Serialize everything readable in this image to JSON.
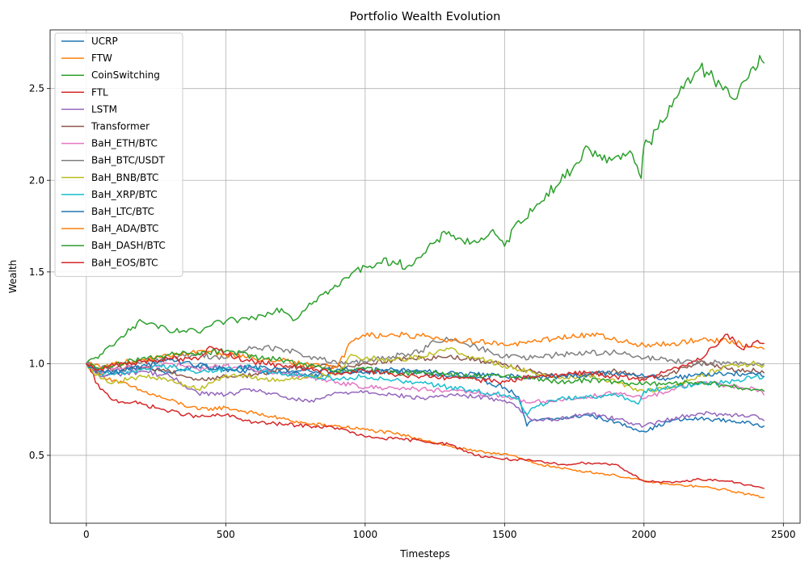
{
  "chart_data": {
    "type": "line",
    "title": "Portfolio Wealth Evolution",
    "xlabel": "Timesteps",
    "ylabel": "Wealth",
    "xlim": [
      -130,
      2560
    ],
    "ylim": [
      0.13,
      2.82
    ],
    "xticks": [
      0,
      500,
      1000,
      1500,
      2000,
      2500
    ],
    "yticks": [
      0.5,
      1.0,
      1.5,
      2.0,
      2.5
    ],
    "xtick_labels": [
      "0",
      "500",
      "1000",
      "1500",
      "2000",
      "2500"
    ],
    "ytick_labels": [
      "0.5",
      "1.0",
      "1.5",
      "2.0",
      "2.5"
    ],
    "grid": true,
    "legend_position": "top-left",
    "series": [
      {
        "name": "UCRP",
        "color": "#1f77b4",
        "x": [
          0,
          50,
          100,
          200,
          300,
          400,
          500,
          600,
          700,
          800,
          900,
          1000,
          1100,
          1200,
          1300,
          1400,
          1500,
          1550,
          1580,
          1600,
          1700,
          1800,
          1900,
          2000,
          2100,
          2200,
          2300,
          2400,
          2430
        ],
        "y": [
          1.0,
          0.93,
          0.96,
          0.98,
          0.95,
          0.99,
          0.97,
          0.96,
          0.95,
          0.94,
          0.95,
          0.95,
          0.96,
          0.95,
          0.93,
          0.92,
          0.87,
          0.82,
          0.66,
          0.69,
          0.7,
          0.72,
          0.68,
          0.63,
          0.69,
          0.7,
          0.69,
          0.67,
          0.66
        ]
      },
      {
        "name": "FTW",
        "color": "#ff7f0e",
        "x": [
          0,
          50,
          100,
          200,
          300,
          400,
          500,
          600,
          700,
          800,
          900,
          1000,
          1100,
          1200,
          1300,
          1400,
          1500,
          1600,
          1700,
          1800,
          1900,
          2000,
          2100,
          2200,
          2300,
          2400,
          2430
        ],
        "y": [
          1.0,
          0.94,
          0.91,
          0.85,
          0.8,
          0.75,
          0.76,
          0.73,
          0.7,
          0.67,
          0.66,
          0.64,
          0.62,
          0.59,
          0.55,
          0.52,
          0.51,
          0.46,
          0.43,
          0.41,
          0.39,
          0.36,
          0.34,
          0.33,
          0.31,
          0.28,
          0.27
        ]
      },
      {
        "name": "CoinSwitching",
        "color": "#2ca02c",
        "x": [
          0,
          50,
          100,
          150,
          200,
          250,
          300,
          350,
          400,
          450,
          500,
          550,
          600,
          650,
          700,
          750,
          800,
          850,
          900,
          950,
          1000,
          1050,
          1100,
          1150,
          1200,
          1250,
          1300,
          1350,
          1400,
          1450,
          1500,
          1550,
          1600,
          1650,
          1700,
          1750,
          1800,
          1850,
          1900,
          1950,
          1975,
          1990,
          2000,
          2020,
          2050,
          2100,
          2150,
          2200,
          2225,
          2250,
          2275,
          2300,
          2325,
          2350,
          2375,
          2400,
          2415,
          2430
        ],
        "y": [
          1.0,
          1.05,
          1.1,
          1.19,
          1.23,
          1.21,
          1.17,
          1.18,
          1.17,
          1.21,
          1.23,
          1.24,
          1.25,
          1.28,
          1.3,
          1.24,
          1.33,
          1.38,
          1.42,
          1.49,
          1.53,
          1.55,
          1.56,
          1.53,
          1.58,
          1.66,
          1.72,
          1.67,
          1.66,
          1.72,
          1.64,
          1.78,
          1.83,
          1.93,
          1.99,
          2.08,
          2.18,
          2.11,
          2.13,
          2.16,
          2.08,
          2.01,
          2.19,
          2.21,
          2.28,
          2.4,
          2.54,
          2.61,
          2.59,
          2.55,
          2.52,
          2.5,
          2.44,
          2.53,
          2.56,
          2.6,
          2.68,
          2.64
        ]
      },
      {
        "name": "FTL",
        "color": "#d62728",
        "x": [
          0,
          50,
          100,
          200,
          300,
          400,
          500,
          600,
          700,
          800,
          900,
          1000,
          1100,
          1200,
          1300,
          1400,
          1500,
          1600,
          1700,
          1800,
          1900,
          2000,
          2100,
          2200,
          2300,
          2400,
          2430
        ],
        "y": [
          1.0,
          0.86,
          0.8,
          0.78,
          0.74,
          0.71,
          0.72,
          0.68,
          0.67,
          0.66,
          0.65,
          0.6,
          0.59,
          0.58,
          0.56,
          0.5,
          0.48,
          0.47,
          0.45,
          0.46,
          0.45,
          0.36,
          0.35,
          0.37,
          0.36,
          0.33,
          0.32
        ]
      },
      {
        "name": "LSTM",
        "color": "#9467bd",
        "x": [
          0,
          50,
          100,
          200,
          300,
          400,
          500,
          600,
          700,
          800,
          900,
          1000,
          1100,
          1200,
          1300,
          1400,
          1500,
          1550,
          1600,
          1700,
          1800,
          1900,
          2000,
          2100,
          2200,
          2300,
          2400,
          2430
        ],
        "y": [
          1.0,
          0.93,
          0.94,
          0.96,
          0.93,
          0.84,
          0.83,
          0.86,
          0.82,
          0.79,
          0.84,
          0.85,
          0.83,
          0.81,
          0.83,
          0.82,
          0.8,
          0.76,
          0.69,
          0.7,
          0.73,
          0.7,
          0.66,
          0.7,
          0.73,
          0.72,
          0.72,
          0.69
        ]
      },
      {
        "name": "Transformer",
        "color": "#8c564b",
        "x": [
          0,
          50,
          100,
          200,
          300,
          400,
          500,
          600,
          700,
          800,
          900,
          1000,
          1100,
          1200,
          1300,
          1400,
          1500,
          1600,
          1700,
          1800,
          1900,
          2000,
          2100,
          2200,
          2300,
          2400,
          2430
        ],
        "y": [
          1.0,
          0.95,
          0.97,
          0.98,
          0.96,
          0.91,
          0.93,
          0.94,
          0.97,
          0.99,
          0.98,
          1.0,
          1.02,
          1.03,
          1.04,
          1.02,
          1.0,
          0.96,
          0.93,
          0.94,
          0.96,
          0.92,
          0.95,
          1.01,
          0.97,
          0.96,
          0.95
        ]
      },
      {
        "name": "BaH_ETH/BTC",
        "color": "#e377c2",
        "x": [
          0,
          50,
          100,
          200,
          300,
          400,
          500,
          600,
          700,
          800,
          900,
          1000,
          1100,
          1200,
          1300,
          1400,
          1500,
          1600,
          1700,
          1800,
          1900,
          2000,
          2100,
          2200,
          2300,
          2400,
          2430
        ],
        "y": [
          1.0,
          0.95,
          0.97,
          0.98,
          1.0,
          0.97,
          0.99,
          0.97,
          0.94,
          0.93,
          0.9,
          0.87,
          0.87,
          0.86,
          0.85,
          0.84,
          0.82,
          0.79,
          0.8,
          0.82,
          0.84,
          0.81,
          0.86,
          0.9,
          0.88,
          0.86,
          0.83
        ]
      },
      {
        "name": "BaH_BTC/USDT",
        "color": "#7f7f7f",
        "x": [
          0,
          50,
          100,
          200,
          300,
          400,
          500,
          600,
          700,
          800,
          900,
          1000,
          1100,
          1200,
          1250,
          1300,
          1400,
          1500,
          1600,
          1700,
          1800,
          1900,
          2000,
          2100,
          2200,
          2300,
          2400,
          2430
        ],
        "y": [
          1.0,
          0.97,
          0.99,
          1.01,
          1.03,
          1.05,
          1.03,
          1.09,
          1.08,
          1.04,
          1.0,
          1.01,
          1.04,
          1.07,
          1.12,
          1.13,
          1.09,
          1.04,
          1.03,
          1.05,
          1.06,
          1.06,
          1.03,
          1.02,
          1.0,
          1.01,
          1.0,
          1.0
        ]
      },
      {
        "name": "BaH_BNB/BTC",
        "color": "#bcbd22",
        "x": [
          0,
          50,
          100,
          200,
          300,
          400,
          500,
          600,
          700,
          800,
          900,
          950,
          1000,
          1100,
          1200,
          1300,
          1400,
          1500,
          1600,
          1700,
          1800,
          1900,
          2000,
          2100,
          2200,
          2300,
          2400,
          2430
        ],
        "y": [
          1.0,
          0.92,
          0.9,
          0.93,
          0.91,
          0.86,
          0.94,
          0.92,
          0.91,
          0.93,
          0.94,
          1.05,
          1.03,
          1.02,
          1.04,
          1.08,
          1.03,
          0.99,
          0.95,
          0.92,
          0.94,
          0.9,
          0.85,
          0.87,
          0.93,
          0.99,
          1.0,
          0.99
        ]
      },
      {
        "name": "BaH_XRP/BTC",
        "color": "#17becf",
        "x": [
          0,
          50,
          100,
          200,
          300,
          400,
          500,
          600,
          700,
          800,
          900,
          1000,
          1100,
          1200,
          1300,
          1400,
          1500,
          1550,
          1580,
          1600,
          1700,
          1800,
          1900,
          1980,
          2000,
          2100,
          2200,
          2300,
          2400,
          2430
        ],
        "y": [
          1.0,
          0.95,
          0.94,
          0.97,
          0.99,
          0.95,
          0.97,
          0.98,
          0.94,
          0.93,
          0.92,
          0.93,
          0.91,
          0.9,
          0.87,
          0.85,
          0.83,
          0.81,
          0.72,
          0.76,
          0.81,
          0.82,
          0.83,
          0.78,
          0.85,
          0.87,
          0.89,
          0.9,
          0.93,
          0.93
        ]
      },
      {
        "name": "BaH_LTC/BTC",
        "color": "#1f77b4",
        "x": [
          0,
          50,
          100,
          200,
          300,
          400,
          500,
          600,
          700,
          800,
          900,
          1000,
          1100,
          1200,
          1300,
          1400,
          1500,
          1600,
          1700,
          1800,
          1900,
          2000,
          2100,
          2200,
          2300,
          2400,
          2430
        ],
        "y": [
          1.0,
          0.96,
          0.95,
          0.99,
          1.02,
          0.99,
          0.97,
          0.98,
          0.97,
          0.96,
          0.97,
          0.96,
          0.97,
          0.96,
          0.95,
          0.94,
          0.93,
          0.93,
          0.93,
          0.94,
          0.95,
          0.93,
          0.92,
          0.94,
          0.95,
          0.94,
          0.93
        ]
      },
      {
        "name": "BaH_ADA/BTC",
        "color": "#ff7f0e",
        "x": [
          0,
          50,
          100,
          200,
          300,
          400,
          500,
          600,
          700,
          800,
          900,
          950,
          1000,
          1100,
          1200,
          1300,
          1400,
          1500,
          1600,
          1700,
          1800,
          1900,
          2000,
          2100,
          2200,
          2300,
          2400,
          2430
        ],
        "y": [
          1.0,
          0.98,
          1.0,
          1.02,
          1.04,
          1.07,
          1.05,
          1.03,
          1.02,
          0.99,
          0.98,
          1.12,
          1.15,
          1.16,
          1.15,
          1.13,
          1.12,
          1.1,
          1.12,
          1.14,
          1.16,
          1.13,
          1.1,
          1.11,
          1.13,
          1.12,
          1.09,
          1.08
        ]
      },
      {
        "name": "BaH_DASH/BTC",
        "color": "#2ca02c",
        "x": [
          0,
          50,
          100,
          200,
          300,
          400,
          500,
          600,
          700,
          800,
          900,
          1000,
          1100,
          1200,
          1300,
          1400,
          1500,
          1600,
          1700,
          1800,
          1900,
          2000,
          2100,
          2200,
          2300,
          2400,
          2430
        ],
        "y": [
          1.0,
          0.97,
          0.99,
          1.03,
          1.05,
          1.06,
          1.07,
          1.04,
          1.02,
          0.99,
          0.96,
          0.97,
          0.95,
          0.95,
          0.94,
          0.93,
          0.93,
          0.92,
          0.9,
          0.91,
          0.9,
          0.89,
          0.89,
          0.9,
          0.88,
          0.86,
          0.85
        ]
      },
      {
        "name": "BaH_EOS/BTC",
        "color": "#d62728",
        "x": [
          0,
          50,
          100,
          200,
          300,
          400,
          450,
          500,
          600,
          700,
          800,
          900,
          1000,
          1100,
          1200,
          1300,
          1400,
          1500,
          1600,
          1700,
          1800,
          1900,
          2000,
          2100,
          2200,
          2250,
          2300,
          2350,
          2400,
          2430
        ],
        "y": [
          1.0,
          0.97,
          0.99,
          1.01,
          1.03,
          1.02,
          1.09,
          1.05,
          1.01,
          0.99,
          0.97,
          0.95,
          0.96,
          0.94,
          0.93,
          0.92,
          0.91,
          0.9,
          0.93,
          0.94,
          0.95,
          0.93,
          0.91,
          0.97,
          1.02,
          1.09,
          1.16,
          1.08,
          1.12,
          1.11
        ]
      }
    ]
  }
}
